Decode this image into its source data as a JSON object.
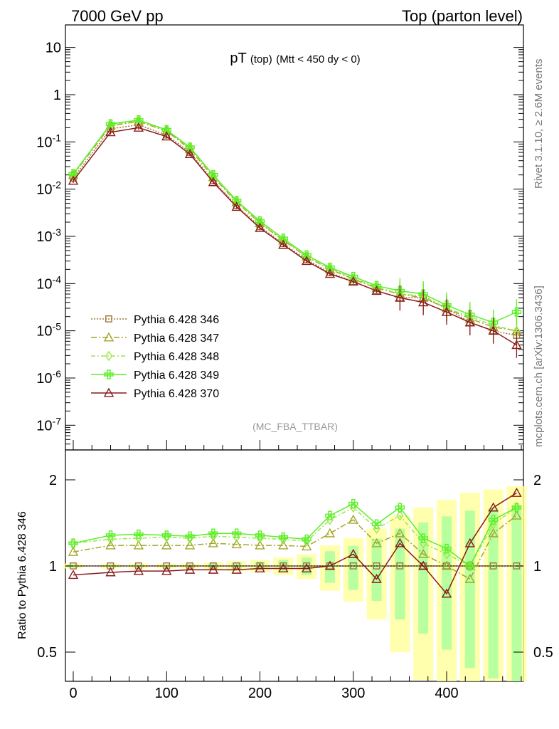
{
  "header": {
    "left": "7000 GeV pp",
    "right": "Top (parton level)"
  },
  "side_labels": {
    "rivet": "Rivet 3.1.10, ≥ 2.6M events",
    "mcplots": "mcplots.cern.ch [arXiv:1306.3436]"
  },
  "chart_data": {
    "type": "line",
    "title": "pT (top) (Mtt < 450 dy < 0)",
    "title_main": "pT",
    "title_sub": "(top)",
    "title_cut": "(Mtt < 450 dy < 0)",
    "analysis_label": "(MC_FBA_TTBAR)",
    "xlabel": "",
    "ylabel": "",
    "ratio_ylabel": "Ratio to Pythia 6.428 346",
    "xlim": [
      -10,
      485
    ],
    "ylim_log": [
      3e-08,
      30
    ],
    "ratio_ylim": [
      0.33,
      2.35
    ],
    "y_scale": "log",
    "legend_position": "lower-left",
    "x_tick_labels": [
      "0",
      "100",
      "200",
      "300",
      "400"
    ],
    "y_tick_labels_main": [
      "10",
      "1",
      "10^-1",
      "10^-2",
      "10^-3",
      "10^-4",
      "10^-5",
      "10^-6",
      "10^-7"
    ],
    "y_tick_labels_ratio": [
      "0.5",
      "1",
      "2"
    ],
    "x": [
      0,
      40,
      70,
      100,
      125,
      150,
      175,
      200,
      225,
      250,
      275,
      300,
      325,
      350,
      375,
      400,
      425,
      450,
      475
    ],
    "series": [
      {
        "name": "Pythia 6.428 346",
        "color": "#a0743a",
        "dash": "2,2",
        "marker": "square",
        "values": [
          0.017,
          0.19,
          0.23,
          0.14,
          0.06,
          0.015,
          0.0045,
          0.0016,
          0.0007,
          0.00032,
          0.00017,
          0.00011,
          7e-05,
          5e-05,
          5e-05,
          3e-05,
          1.5e-05,
          1e-05,
          8e-06
        ],
        "ratio": [
          1,
          1,
          1,
          1,
          1,
          1,
          1,
          1,
          1,
          1,
          1,
          1,
          1,
          1,
          1,
          1,
          1,
          1,
          1
        ]
      },
      {
        "name": "Pythia 6.428 347",
        "color": "#a5a526",
        "dash": "8,3,2,3",
        "marker": "triangle",
        "values": [
          0.02,
          0.22,
          0.27,
          0.17,
          0.07,
          0.018,
          0.0053,
          0.0019,
          0.00082,
          0.00037,
          0.0002,
          0.000125,
          8e-05,
          6e-05,
          5e-05,
          3e-05,
          1.8e-05,
          1.2e-05,
          1e-05
        ],
        "ratio": [
          1.12,
          1.18,
          1.18,
          1.18,
          1.18,
          1.2,
          1.19,
          1.18,
          1.18,
          1.17,
          1.3,
          1.45,
          1.2,
          1.3,
          1.1,
          1.0,
          0.9,
          1.3,
          1.5
        ]
      },
      {
        "name": "Pythia 6.428 348",
        "color": "#9fe44a",
        "dash": "6,3,2,3",
        "marker": "diamond",
        "values": [
          0.021,
          0.23,
          0.28,
          0.18,
          0.075,
          0.019,
          0.0055,
          0.002,
          0.00085,
          0.00038,
          0.00021,
          0.00013,
          8.5e-05,
          6e-05,
          5.5e-05,
          3e-05,
          2e-05,
          1.3e-05,
          1e-05
        ],
        "ratio": [
          1.2,
          1.24,
          1.25,
          1.26,
          1.25,
          1.27,
          1.26,
          1.25,
          1.24,
          1.22,
          1.45,
          1.6,
          1.35,
          1.5,
          1.2,
          1.1,
          1.0,
          1.4,
          1.6
        ]
      },
      {
        "name": "Pythia 6.428 349",
        "color": "#5af026",
        "dash": "",
        "marker": "cross",
        "values": [
          0.021,
          0.24,
          0.29,
          0.18,
          0.077,
          0.02,
          0.0057,
          0.0021,
          0.0009,
          0.0004,
          0.00022,
          0.00014,
          9e-05,
          7e-05,
          6e-05,
          3.5e-05,
          2.2e-05,
          1.5e-05,
          2.5e-05
        ],
        "ratio": [
          1.2,
          1.28,
          1.29,
          1.28,
          1.27,
          1.3,
          1.3,
          1.28,
          1.26,
          1.24,
          1.5,
          1.65,
          1.4,
          1.6,
          1.25,
          1.15,
          1.0,
          1.45,
          1.6
        ]
      },
      {
        "name": "Pythia 6.428 370",
        "color": "#8b1a1a",
        "dash": "",
        "marker": "triangle",
        "values": [
          0.015,
          0.16,
          0.2,
          0.13,
          0.055,
          0.014,
          0.0042,
          0.0015,
          0.00066,
          0.0003,
          0.00016,
          0.00011,
          7e-05,
          5e-05,
          4e-05,
          2.5e-05,
          1.5e-05,
          1e-05,
          5e-06
        ],
        "ratio": [
          0.93,
          0.95,
          0.96,
          0.96,
          0.97,
          0.97,
          0.97,
          0.98,
          0.98,
          0.98,
          1.0,
          1.1,
          0.9,
          1.2,
          1.0,
          0.8,
          1.2,
          1.6,
          1.8
        ]
      }
    ]
  }
}
